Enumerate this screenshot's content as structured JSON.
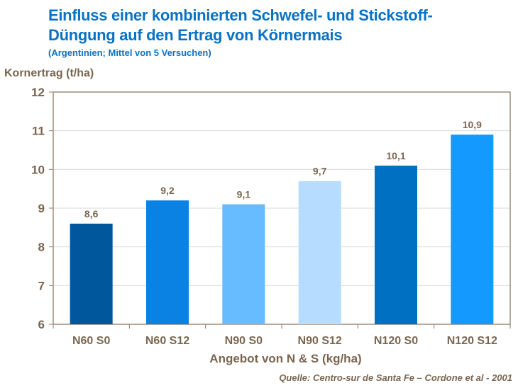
{
  "title_line1": "Einfluss einer kombinierten Schwefel- und Stickstoff-",
  "title_line2": "Düngung auf den Ertrag von Körnermais",
  "subtitle": "(Argentinien;  Mittel  von 5 Versuchen)",
  "source": "Quelle: Centro-sur de Santa Fe – Cordone et al - 2001",
  "chart_data": {
    "type": "bar",
    "categories": [
      "N60 S0",
      "N60 S12",
      "N90 S0",
      "N90 S12",
      "N120 S0",
      "N120 S12"
    ],
    "values": [
      8.6,
      9.2,
      9.1,
      9.7,
      10.1,
      10.9
    ],
    "data_labels": [
      "8,6",
      "9,2",
      "9,1",
      "9,7",
      "10,1",
      "10,9"
    ],
    "colors": [
      "#00579b",
      "#0a82e4",
      "#66bcff",
      "#b6ddff",
      "#0070c2",
      "#1499ff"
    ],
    "xlabel": "Angebot von N & S (kg/ha)",
    "ylabel": "Kornertrag (t/ha)",
    "ylim": [
      6,
      12
    ],
    "yticks": [
      6,
      7,
      8,
      9,
      10,
      11,
      12
    ],
    "grid": true,
    "legend": "none"
  }
}
